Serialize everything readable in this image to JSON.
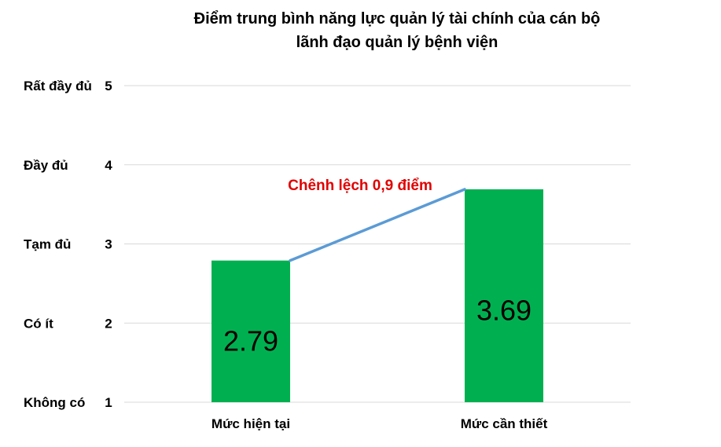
{
  "chart_data": {
    "type": "bar",
    "title_lines": [
      "Điểm trung bình năng lực quản lý tài chính của cán bộ",
      "lãnh đạo quản lý bệnh viện"
    ],
    "categories": [
      "Mức hiện tại",
      "Mức cần thiết"
    ],
    "values": [
      2.79,
      3.69
    ],
    "value_labels": [
      "2.79",
      "3.69"
    ],
    "ylim": [
      1,
      5
    ],
    "y_ticks": [
      1,
      2,
      3,
      4,
      5
    ],
    "y_tick_labels": [
      "1",
      "2",
      "3",
      "4",
      "5"
    ],
    "y_level_labels": [
      "Không có",
      "Có ít",
      "Tạm đủ",
      "Đầy đủ",
      "Rất đầy đủ"
    ],
    "annotation": "Chênh lệch 0,9 điểm",
    "grid": true,
    "legend": "none",
    "colors": {
      "bar": "#00b050",
      "connector": "#5b9bd5",
      "annotation": "#e00000",
      "grid": "#d9d9d9"
    }
  }
}
